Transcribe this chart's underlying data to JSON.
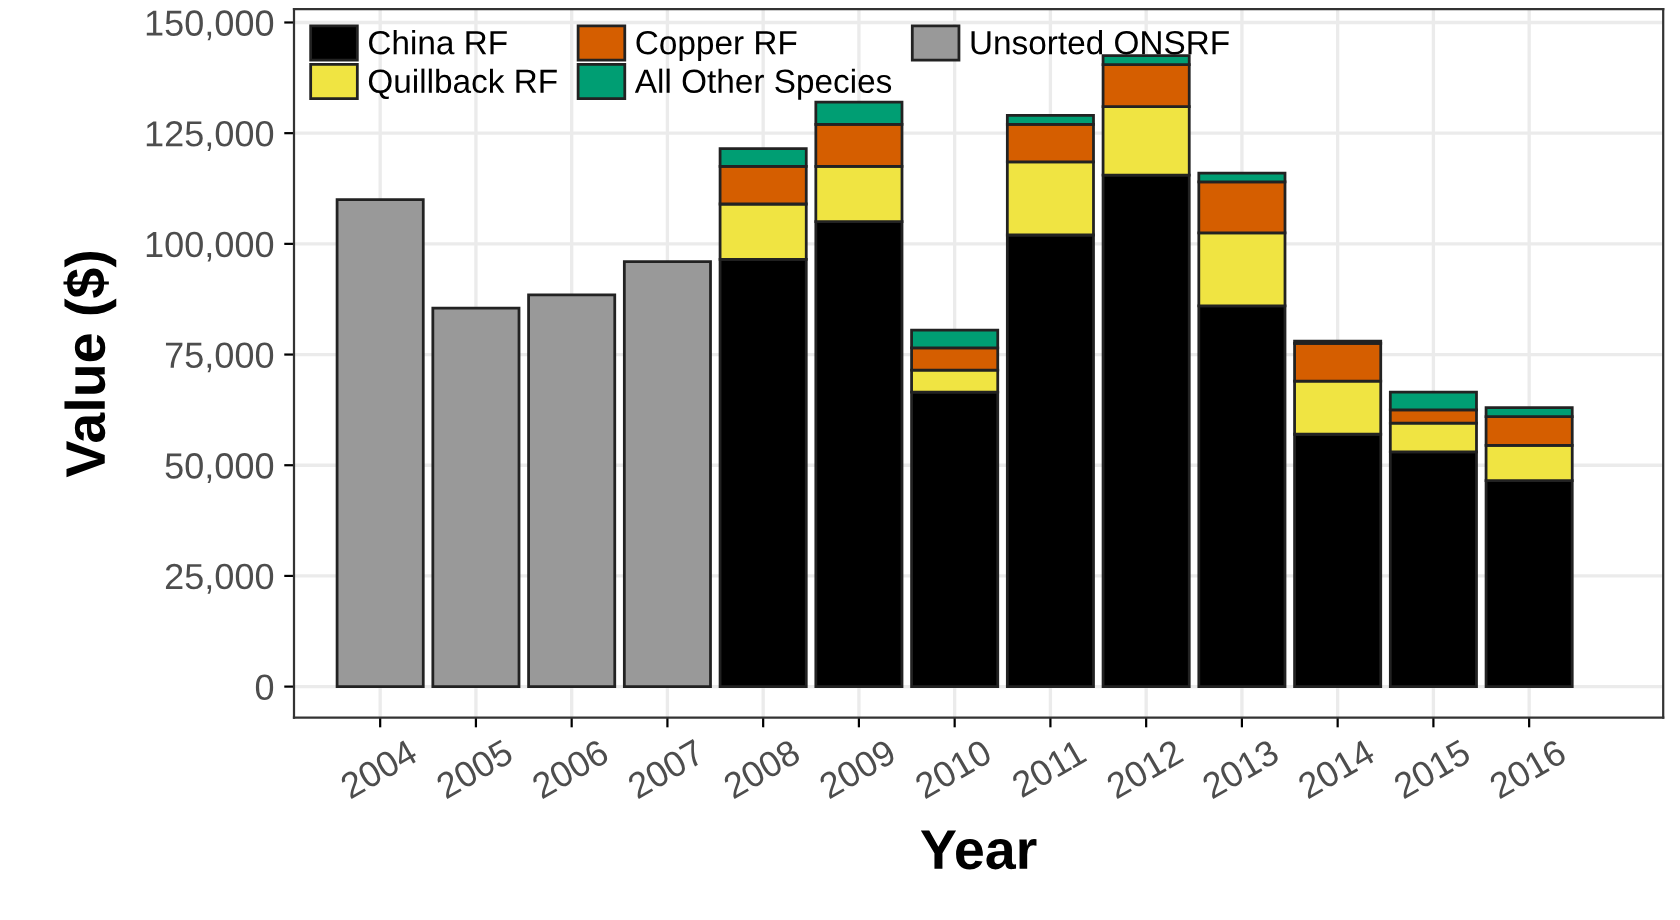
{
  "chart_data": {
    "type": "bar",
    "stacked": true,
    "xlabel": "Year",
    "ylabel": "Value ($)",
    "categories": [
      "2004",
      "2005",
      "2006",
      "2007",
      "2008",
      "2009",
      "2010",
      "2011",
      "2012",
      "2013",
      "2014",
      "2015",
      "2016"
    ],
    "series": [
      {
        "name": "China RF",
        "color": "#000000",
        "values": [
          null,
          null,
          null,
          null,
          96500,
          105000,
          66500,
          102000,
          115500,
          86000,
          57000,
          53000,
          46500
        ]
      },
      {
        "name": "Quillback RF",
        "color": "#f0e442",
        "values": [
          null,
          null,
          null,
          null,
          12500,
          12500,
          5000,
          16500,
          15500,
          16500,
          12000,
          6500,
          8000
        ]
      },
      {
        "name": "Copper RF",
        "color": "#d55e00",
        "values": [
          null,
          null,
          null,
          null,
          8500,
          9500,
          5000,
          8500,
          9500,
          11500,
          8500,
          3000,
          6500
        ]
      },
      {
        "name": "All Other Species",
        "color": "#009e73",
        "values": [
          null,
          null,
          null,
          null,
          4000,
          5000,
          4000,
          2000,
          2000,
          2000,
          500,
          4000,
          2000
        ]
      },
      {
        "name": "Unsorted ONSRF",
        "color": "#999999",
        "values": [
          110000,
          85500,
          88500,
          96000,
          null,
          null,
          null,
          null,
          null,
          null,
          null,
          null,
          null
        ]
      }
    ],
    "ylim": [
      -7000,
      153000
    ],
    "yticks": [
      {
        "value": 0,
        "label": "0"
      },
      {
        "value": 25000,
        "label": "25,000"
      },
      {
        "value": 50000,
        "label": "50,000"
      },
      {
        "value": 75000,
        "label": "75,000"
      },
      {
        "value": 100000,
        "label": "100,000"
      },
      {
        "value": 125000,
        "label": "125,000"
      },
      {
        "value": 150000,
        "label": "150,000"
      }
    ],
    "grid": true,
    "legend": "top left"
  }
}
